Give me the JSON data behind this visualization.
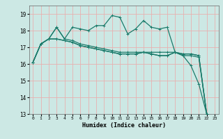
{
  "xlabel": "Humidex (Indice chaleur)",
  "bg_color": "#cce8e4",
  "grid_color": "#e8b0b0",
  "line_color": "#1a7a6a",
  "xlim": [
    -0.5,
    23.5
  ],
  "ylim": [
    13,
    19.5
  ],
  "yticks": [
    13,
    14,
    15,
    16,
    17,
    18,
    19
  ],
  "xticks": [
    0,
    1,
    2,
    3,
    4,
    5,
    6,
    7,
    8,
    9,
    10,
    11,
    12,
    13,
    14,
    15,
    16,
    17,
    18,
    19,
    20,
    21,
    22,
    23
  ],
  "series": [
    [
      16.1,
      17.2,
      17.5,
      18.2,
      17.5,
      18.2,
      18.1,
      18.0,
      18.3,
      18.3,
      18.9,
      18.8,
      17.8,
      18.1,
      18.6,
      18.2,
      18.1,
      18.2,
      16.7,
      16.5,
      15.9,
      14.8,
      13.0
    ],
    [
      16.1,
      17.2,
      17.5,
      18.2,
      17.5,
      17.4,
      17.2,
      17.1,
      17.0,
      16.9,
      16.8,
      16.7,
      16.7,
      16.7,
      16.7,
      16.7,
      16.7,
      16.7,
      16.7,
      16.6,
      16.6,
      16.5,
      13.0
    ],
    [
      16.1,
      17.2,
      17.5,
      17.5,
      17.4,
      17.3,
      17.1,
      17.0,
      16.9,
      16.8,
      16.7,
      16.6,
      16.6,
      16.6,
      16.7,
      16.6,
      16.5,
      16.5,
      16.7,
      16.6,
      16.6,
      16.5,
      13.0
    ],
    [
      16.1,
      17.2,
      17.5,
      17.5,
      17.4,
      17.3,
      17.1,
      17.0,
      16.9,
      16.8,
      16.7,
      16.6,
      16.6,
      16.6,
      16.7,
      16.6,
      16.5,
      16.5,
      16.7,
      16.5,
      16.5,
      16.4,
      13.0
    ]
  ],
  "series_x": [
    [
      0,
      1,
      2,
      3,
      4,
      5,
      6,
      7,
      8,
      9,
      10,
      11,
      12,
      13,
      14,
      15,
      16,
      17,
      18,
      19,
      20,
      21,
      22
    ],
    [
      0,
      1,
      2,
      3,
      4,
      5,
      6,
      7,
      8,
      9,
      10,
      11,
      12,
      13,
      14,
      15,
      16,
      17,
      18,
      19,
      20,
      21,
      22
    ],
    [
      0,
      1,
      2,
      3,
      4,
      5,
      6,
      7,
      8,
      9,
      10,
      11,
      12,
      13,
      14,
      15,
      16,
      17,
      18,
      19,
      20,
      21,
      22
    ],
    [
      0,
      1,
      2,
      3,
      4,
      5,
      6,
      7,
      8,
      9,
      10,
      11,
      12,
      13,
      14,
      15,
      16,
      17,
      18,
      19,
      20,
      21,
      22
    ]
  ]
}
